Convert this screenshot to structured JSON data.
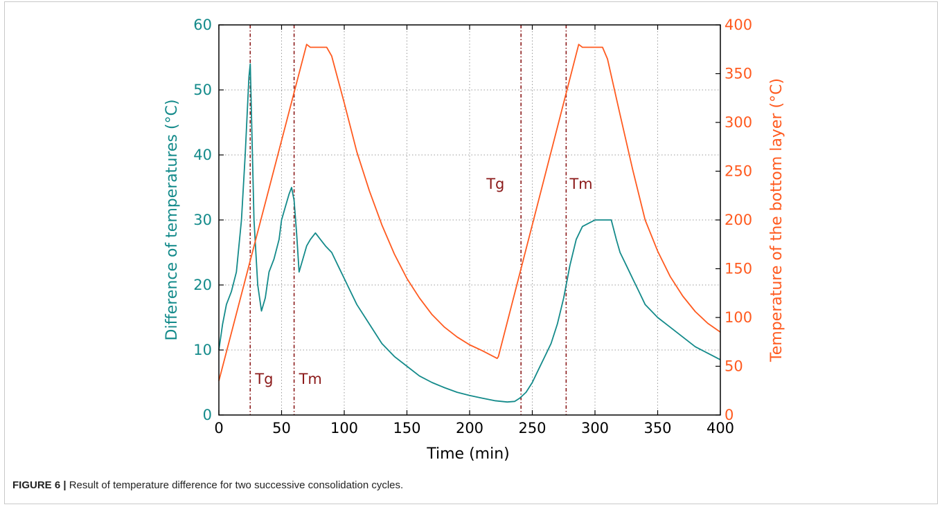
{
  "caption": {
    "figure_label": "FIGURE 6 |",
    "text": " Result of temperature difference for two successive consolidation cycles."
  },
  "colors": {
    "left_axis": "#138a8a",
    "right_axis": "#ff5a1f",
    "marker": "#8b1a1a",
    "grid": "#9a9a9a",
    "frame": "#000000"
  },
  "chart_data": {
    "type": "line",
    "xlabel": "Time (min)",
    "ylabel_left": "Difference of temperatures (°C)",
    "ylabel_right": "Temperature of the bottom layer (°C)",
    "xlim": [
      0,
      400
    ],
    "ylim_left": [
      0,
      60
    ],
    "ylim_right": [
      0,
      400
    ],
    "x_ticks": [
      "0",
      "50",
      "100",
      "150",
      "200",
      "250",
      "300",
      "350",
      "400"
    ],
    "y_left_ticks": [
      "0",
      "10",
      "20",
      "30",
      "40",
      "50",
      "60"
    ],
    "y_right_ticks": [
      "0",
      "50",
      "100",
      "150",
      "200",
      "250",
      "300",
      "350",
      "400"
    ],
    "grid": true,
    "markers": [
      {
        "x": 25,
        "label": "Tg"
      },
      {
        "x": 60,
        "label": "Tm"
      },
      {
        "x": 241,
        "label": "Tg"
      },
      {
        "x": 277,
        "label": "Tm"
      }
    ],
    "series": [
      {
        "axis": "left",
        "x": [
          0,
          3,
          6,
          10,
          14,
          18,
          21,
          23,
          24,
          25,
          26,
          28,
          31,
          34,
          37,
          40,
          44,
          48,
          50,
          53,
          56,
          58,
          60,
          62,
          64,
          67,
          70,
          73,
          77,
          81,
          85,
          90,
          95,
          100,
          110,
          120,
          130,
          140,
          150,
          160,
          170,
          180,
          190,
          200,
          210,
          220,
          230,
          236,
          240,
          245,
          250,
          255,
          260,
          265,
          270,
          275,
          280,
          285,
          290,
          295,
          300,
          305,
          310,
          313,
          317,
          320,
          325,
          330,
          335,
          340,
          350,
          360,
          370,
          380,
          390,
          400
        ],
        "y": [
          10,
          14,
          17,
          19,
          22,
          30,
          40,
          48,
          52,
          54,
          46,
          30,
          20,
          16,
          18,
          22,
          24,
          27,
          30,
          32,
          34,
          35,
          33,
          28,
          22,
          24,
          26,
          27,
          28,
          27,
          26,
          25,
          23,
          21,
          17,
          14,
          11,
          9,
          7.5,
          6,
          5,
          4.2,
          3.5,
          3,
          2.6,
          2.2,
          2,
          2.1,
          2.6,
          3.5,
          5,
          7,
          9,
          11,
          14,
          18,
          23,
          27,
          29,
          29.5,
          30,
          30,
          30,
          30,
          27,
          25,
          23,
          21,
          19,
          17,
          15,
          13.5,
          12,
          10.5,
          9.5,
          8.5
        ]
      },
      {
        "axis": "right",
        "x": [
          0,
          70,
          73,
          86,
          90,
          100,
          110,
          120,
          130,
          140,
          150,
          160,
          170,
          180,
          190,
          200,
          210,
          222,
          223,
          287,
          290,
          306,
          310,
          320,
          330,
          340,
          350,
          360,
          370,
          380,
          390,
          400
        ],
        "y": [
          35,
          380,
          377,
          377,
          368,
          320,
          270,
          230,
          195,
          165,
          140,
          120,
          103,
          90,
          80,
          72,
          66,
          58,
          60,
          380,
          377,
          377,
          365,
          308,
          252,
          200,
          168,
          142,
          122,
          106,
          94,
          85
        ]
      }
    ]
  }
}
